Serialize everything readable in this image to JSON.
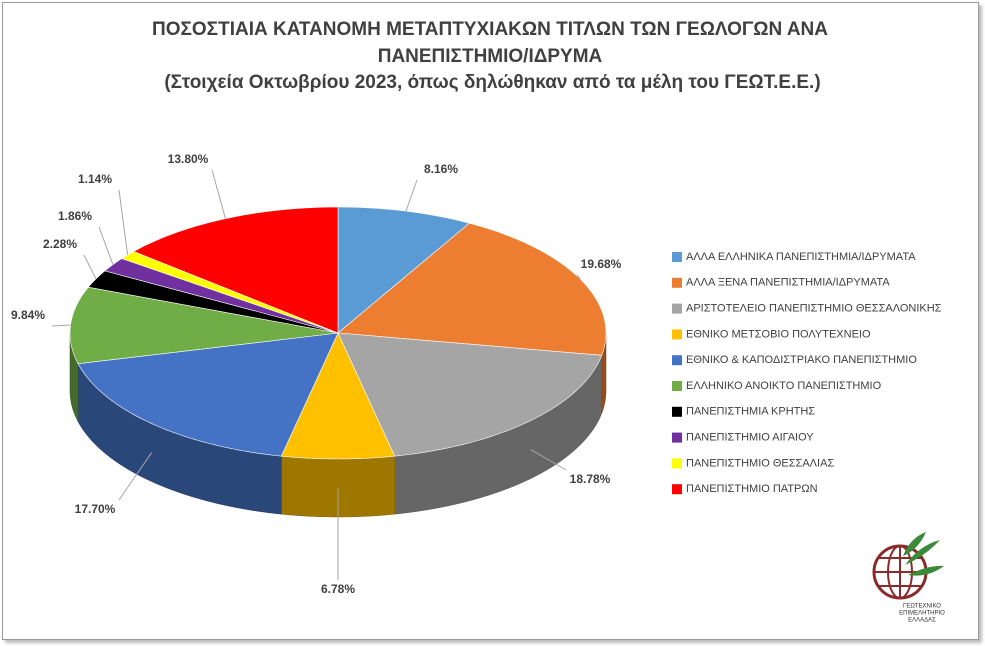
{
  "chart_data": {
    "type": "pie3d",
    "title": "ΠΟΣΟΣΤΙΑΙΑ ΚΑΤΑΝΟΜΗ ΜΕΤΑΠΤΥΧΙΑΚΩΝ ΤΙΤΛΩΝ ΤΩΝ ΓΕΩΛΟΓΩΝ ΑΝΑ ΠΑΝΕΠΙΣΤΗΜΙΟ/ΙΔΡΥΜΑ",
    "subtitle": "(Στοιχεία Οκτωβρίου 2023, όπως δηλώθηκαν από τα μέλη του ΓΕΩΤ.Ε.Ε.)",
    "categories": [
      "ΑΛΛΑ ΕΛΛΗΝΙΚΑ ΠΑΝΕΠΙΣΤΗΜΙΑ/ΙΔΡΥΜΑΤΑ",
      "ΑΛΛΑ ΞΕΝΑ ΠΑΝΕΠΙΣΤΗΜΙΑ/ΙΔΡΥΜΑΤΑ",
      "ΑΡΙΣΤΟΤΕΛΕΙΟ ΠΑΝΕΠΙΣΤΗΜΙΟ ΘΕΣΣΑΛΟΝΙΚΗΣ",
      "ΕΘΝΙΚΟ ΜΕΤΣΟΒΙΟ ΠΟΛΥΤΕΧΝΕΙΟ",
      "ΕΘΝΙΚΟ & ΚΑΠΟΔΙΣΤΡΙΑΚΟ ΠΑΝΕΠΙΣΤΗΜΙΟ",
      "ΕΛΛΗΝΙΚΟ ΑΝΟΙΚΤΟ ΠΑΝΕΠΙΣΤΗΜΙΟ",
      "ΠΑΝΕΠΙΣΤΗΜΙΑ ΚΡΗΤΗΣ",
      "ΠΑΝΕΠΙΣΤΗΜΙΟ ΑΙΓΑΙΟΥ",
      "ΠΑΝΕΠΙΣΤΗΜΙΟ ΘΕΣΣΑΛΙΑΣ",
      "ΠΑΝΕΠΙΣΤΗΜΙΟ ΠΑΤΡΩΝ"
    ],
    "values": [
      8.16,
      19.68,
      18.78,
      6.78,
      17.7,
      9.84,
      2.28,
      1.86,
      1.14,
      13.8
    ],
    "value_labels": [
      "8.16%",
      "19.68%",
      "18.78%",
      "6.78%",
      "17.70%",
      "9.84%",
      "2.28%",
      "1.86%",
      "1.14%",
      "13.80%"
    ],
    "colors": [
      "#5b9bd5",
      "#ed7d31",
      "#a5a5a5",
      "#ffc000",
      "#4472c4",
      "#70ad47",
      "#000000",
      "#7030a0",
      "#ffff00",
      "#ff0000"
    ],
    "legend": "right"
  },
  "logo": {
    "lines": [
      "ΓΕΩΤΕΧΝΙΚΟ",
      "ΕΠΙΜΕΛΗΤΗΡΙΟ",
      "ΕΛΛΑΔΑΣ"
    ]
  }
}
